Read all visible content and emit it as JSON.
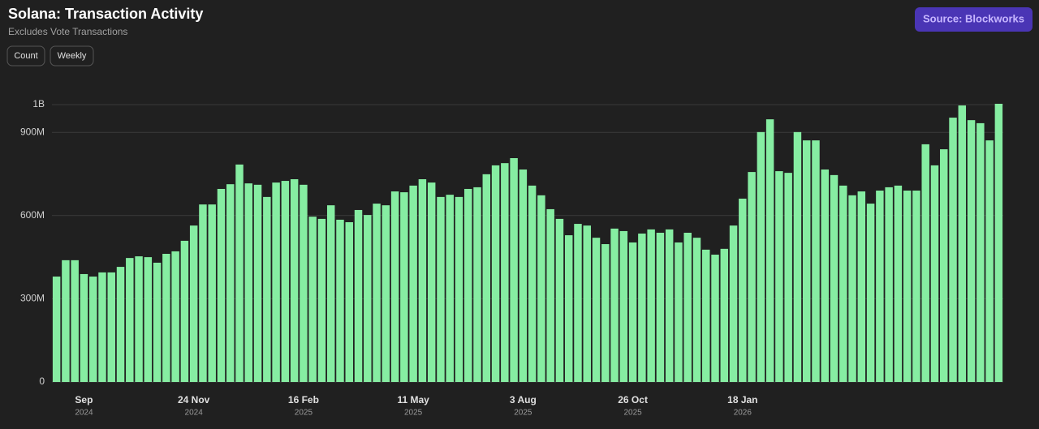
{
  "chart_data": {
    "type": "bar",
    "title": "Solana: Transaction Activity",
    "subtitle": "Excludes Vote Transactions",
    "controls": [
      "Count",
      "Weekly"
    ],
    "source": "Source: Blockworks",
    "color": "#86eda2",
    "grid": true,
    "ylim": [
      0,
      1000000000
    ],
    "yticks": [
      0,
      {
        "value": 300000000,
        "label": "300M"
      },
      {
        "value": 600000000,
        "label": "600M"
      },
      {
        "value": 900000000,
        "label": "900M"
      },
      {
        "value": 1000000000,
        "label": "1B"
      }
    ],
    "categories": [
      null,
      null,
      null,
      "Sep",
      null,
      null,
      null,
      null,
      null,
      null,
      null,
      null,
      null,
      null,
      null,
      "24 Nov",
      null,
      null,
      null,
      null,
      null,
      null,
      null,
      null,
      null,
      null,
      null,
      "16 Feb",
      null,
      null,
      null,
      null,
      null,
      null,
      null,
      null,
      null,
      null,
      null,
      "11 May",
      null,
      null,
      null,
      null,
      null,
      null,
      null,
      null,
      null,
      null,
      null,
      "3 Aug",
      null,
      null,
      null,
      null,
      null,
      null,
      null,
      null,
      null,
      null,
      null,
      "26 Oct",
      null,
      null,
      null,
      null,
      null,
      null,
      null,
      null,
      null,
      null,
      null,
      "18 Jan",
      null,
      null,
      null,
      null,
      null,
      null,
      null,
      null,
      null,
      null,
      null,
      null,
      null,
      null,
      null,
      null,
      null,
      null,
      null,
      null,
      null,
      null,
      null,
      null,
      null,
      null,
      null,
      null
    ],
    "category_years": [
      null,
      null,
      null,
      "2024",
      null,
      null,
      null,
      null,
      null,
      null,
      null,
      null,
      null,
      null,
      null,
      "2024",
      null,
      null,
      null,
      null,
      null,
      null,
      null,
      null,
      null,
      null,
      null,
      "2025",
      null,
      null,
      null,
      null,
      null,
      null,
      null,
      null,
      null,
      null,
      null,
      "2025",
      null,
      null,
      null,
      null,
      null,
      null,
      null,
      null,
      null,
      null,
      null,
      "2025",
      null,
      null,
      null,
      null,
      null,
      null,
      null,
      null,
      null,
      null,
      null,
      "2025",
      null,
      null,
      null,
      null,
      null,
      null,
      null,
      null,
      null,
      null,
      null,
      "2026",
      null,
      null,
      null,
      null,
      null,
      null,
      null,
      null,
      null,
      null,
      null,
      null,
      null,
      null,
      null,
      null,
      null,
      null,
      null,
      null,
      null,
      null,
      null,
      null,
      null,
      null,
      null,
      null
    ],
    "values": [
      380000000,
      439000000,
      439000000,
      389000000,
      380000000,
      395000000,
      395000000,
      415000000,
      447000000,
      453000000,
      450000000,
      430000000,
      462000000,
      471000000,
      509000000,
      564000000,
      640000000,
      640000000,
      696000000,
      713000000,
      784000000,
      716000000,
      711000000,
      667000000,
      719000000,
      725000000,
      731000000,
      711000000,
      596000000,
      588000000,
      637000000,
      585000000,
      576000000,
      620000000,
      602000000,
      643000000,
      637000000,
      687000000,
      684000000,
      708000000,
      731000000,
      719000000,
      667000000,
      675000000,
      667000000,
      696000000,
      702000000,
      749000000,
      781000000,
      789000000,
      807000000,
      766000000,
      708000000,
      673000000,
      623000000,
      588000000,
      529000000,
      570000000,
      564000000,
      520000000,
      497000000,
      553000000,
      544000000,
      503000000,
      535000000,
      550000000,
      538000000,
      550000000,
      503000000,
      538000000,
      520000000,
      477000000,
      459000000,
      480000000,
      564000000,
      661000000,
      757000000,
      901000000,
      947000000,
      760000000,
      754000000,
      901000000,
      871000000,
      871000000,
      766000000,
      746000000,
      708000000,
      673000000,
      687000000,
      643000000,
      690000000,
      702000000,
      708000000,
      690000000,
      690000000,
      857000000,
      781000000,
      839000000,
      953000000,
      997000000,
      944000000,
      933000000,
      871000000,
      1003000000
    ]
  }
}
